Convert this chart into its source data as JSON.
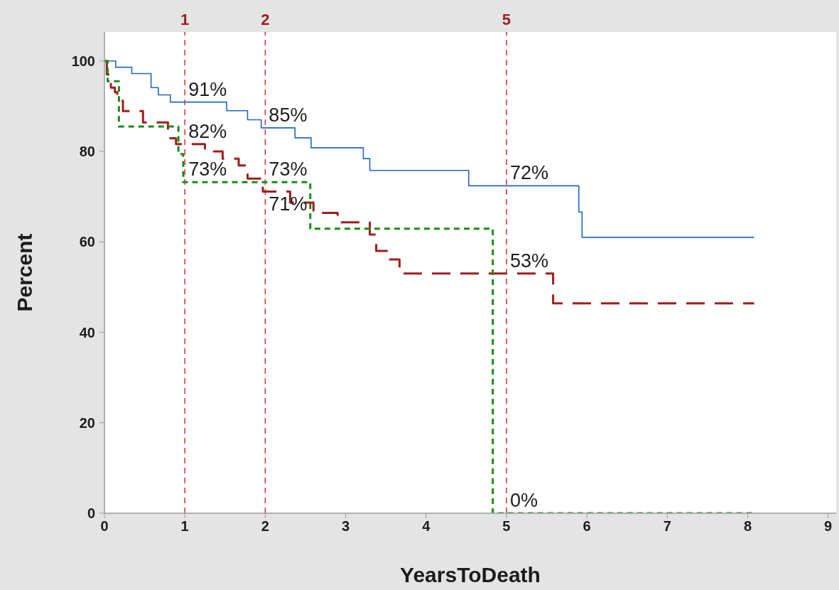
{
  "chart_data": {
    "type": "step",
    "xlabel": "YearsToDeath",
    "ylabel": "Percent",
    "xlim": [
      0,
      9.1
    ],
    "xticks": [
      0,
      1,
      2,
      3,
      4,
      5,
      6,
      7,
      8,
      9
    ],
    "ylim": [
      0,
      106.4
    ],
    "yticks": [
      0,
      20,
      40,
      60,
      80,
      100
    ],
    "series": [
      {
        "color": "#2166c4",
        "line_style": "solid",
        "x": [
          0,
          0.14,
          0.34,
          0.58,
          0.67,
          0.82,
          1.52,
          1.78,
          1.95,
          2.37,
          2.57,
          3.22,
          3.3,
          4.53,
          5.9,
          5.94,
          8.08
        ],
        "values": [
          100,
          98.6,
          97.2,
          94.1,
          92.5,
          90.9,
          89.0,
          87.0,
          85.2,
          83.0,
          80.8,
          78.4,
          75.8,
          72.4,
          66.6,
          61.0,
          61.0
        ]
      },
      {
        "color": "#a01e1e",
        "line_style": "dashed",
        "x": [
          0,
          0.03,
          0.08,
          0.13,
          0.16,
          0.23,
          0.48,
          0.79,
          0.82,
          0.89,
          1.25,
          1.47,
          1.67,
          1.78,
          1.97,
          2.31,
          2.6,
          2.9,
          3.3,
          3.38,
          3.53,
          3.67,
          5.58,
          8.08
        ],
        "values": [
          100,
          97.0,
          94.1,
          93.1,
          91.2,
          88.9,
          86.4,
          84.2,
          82.9,
          81.6,
          80.0,
          78.4,
          76.9,
          74.0,
          71.1,
          68.7,
          66.4,
          64.3,
          61.6,
          58.0,
          56.1,
          53.0,
          46.4,
          46.4
        ]
      },
      {
        "color": "#1a8a1a",
        "line_style": "dashed",
        "x": [
          0,
          0.04,
          0.18,
          0.92,
          0.98,
          2.56,
          4.83,
          8.08
        ],
        "values": [
          100,
          95.5,
          85.5,
          79.4,
          73.2,
          62.9,
          0,
          0
        ]
      }
    ],
    "ref_lines": [
      {
        "axis": "x",
        "value": 1,
        "label": "1",
        "color": "#e6282c",
        "line_style": "dashed"
      },
      {
        "axis": "x",
        "value": 2,
        "label": "2",
        "color": "#e6282c",
        "line_style": "dashed"
      },
      {
        "axis": "x",
        "value": 5,
        "label": "5",
        "color": "#e6282c",
        "line_style": "dashed"
      }
    ],
    "annotations": [
      {
        "text": "91%",
        "x": 1,
        "y": 90.9
      },
      {
        "text": "82%",
        "x": 1,
        "y": 81.6
      },
      {
        "text": "73%",
        "x": 1,
        "y": 73.2
      },
      {
        "text": "85%",
        "x": 2,
        "y": 85.2
      },
      {
        "text": "73%",
        "x": 2,
        "y": 73.2
      },
      {
        "text": "71%",
        "x": 2,
        "y": 71.1
      },
      {
        "text": "72%",
        "x": 5,
        "y": 72.4
      },
      {
        "text": "53%",
        "x": 5,
        "y": 53.0
      },
      {
        "text": "0%",
        "x": 5,
        "y": 0
      }
    ]
  }
}
